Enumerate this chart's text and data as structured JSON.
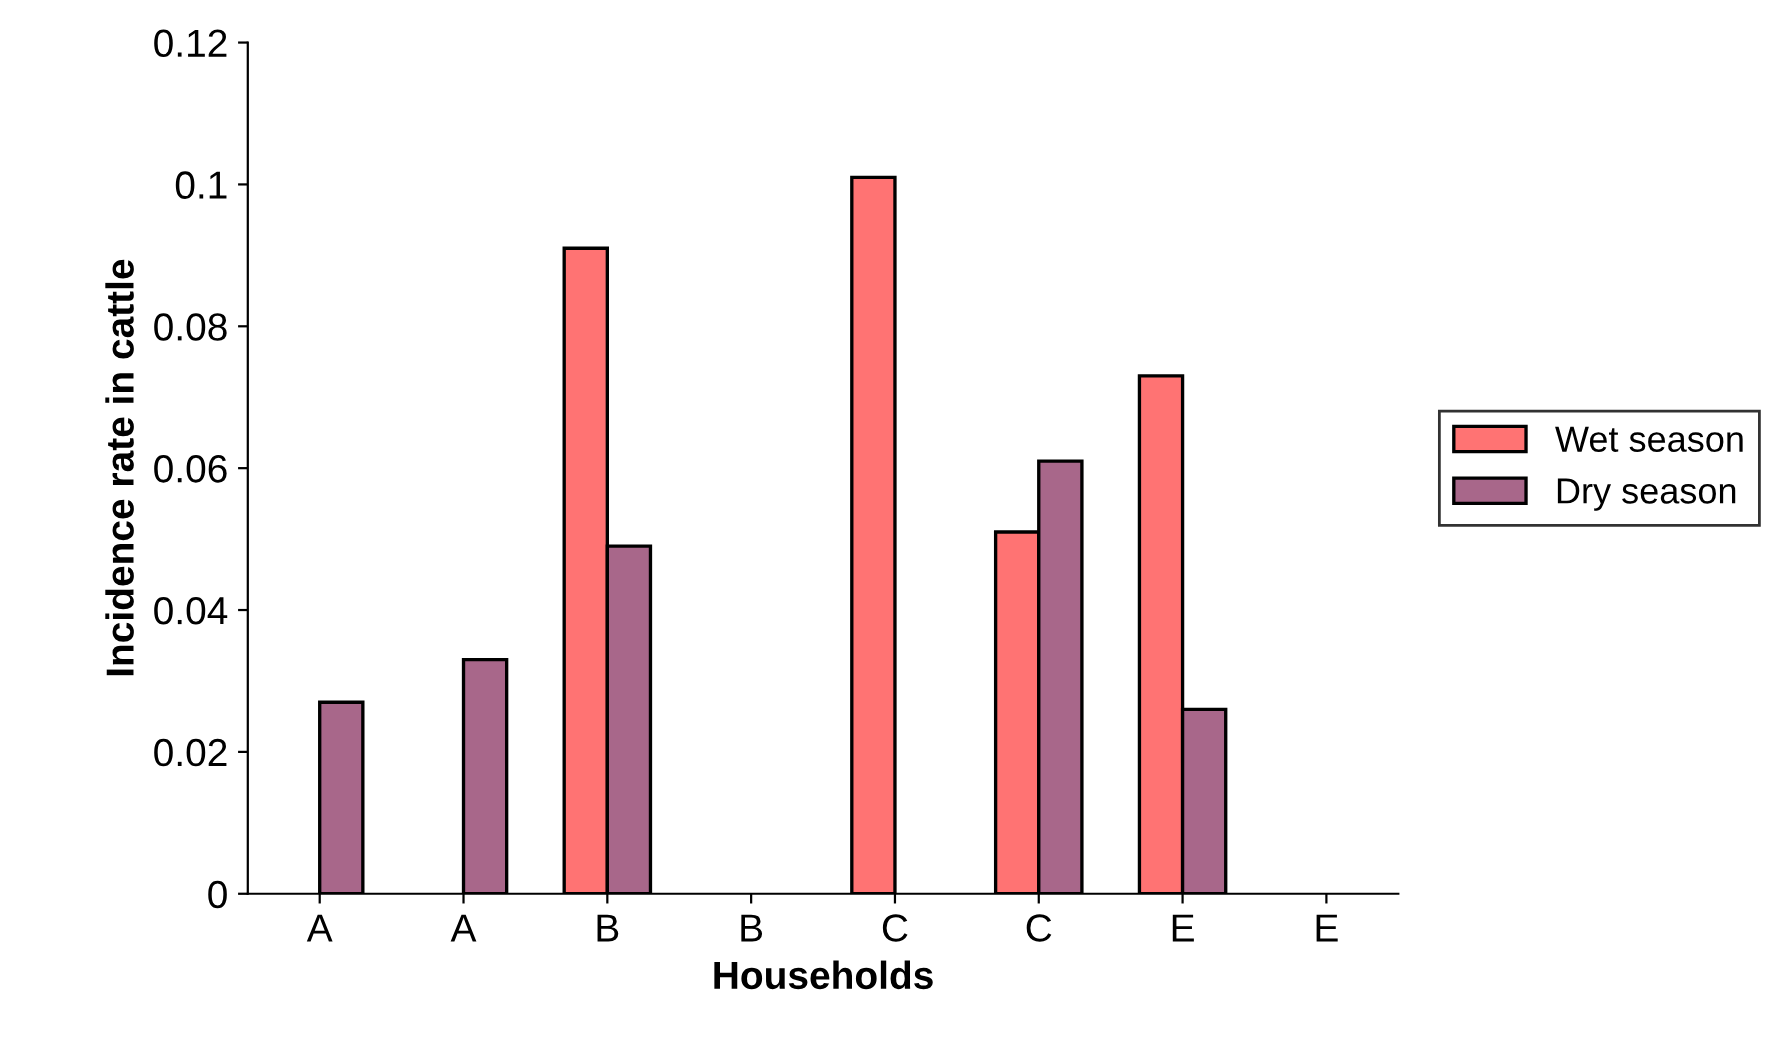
{
  "chart_data": {
    "type": "bar",
    "xlabel": "Households",
    "ylabel": "Incidence rate in cattle",
    "categories": [
      "A",
      "A",
      "B",
      "B",
      "C",
      "C",
      "E",
      "E"
    ],
    "series": [
      {
        "name": "Wet season",
        "color": "#ff7373",
        "values": [
          null,
          null,
          0.091,
          null,
          0.101,
          0.051,
          0.073,
          null
        ]
      },
      {
        "name": "Dry season",
        "color": "#a8678a",
        "values": [
          0.027,
          0.033,
          0.049,
          null,
          null,
          0.061,
          0.026,
          null
        ]
      }
    ],
    "ylim": [
      0,
      0.12
    ],
    "yticks": [
      0,
      0.02,
      0.04,
      0.06,
      0.08,
      0.1,
      0.12
    ],
    "grid": false,
    "legend": "right"
  }
}
